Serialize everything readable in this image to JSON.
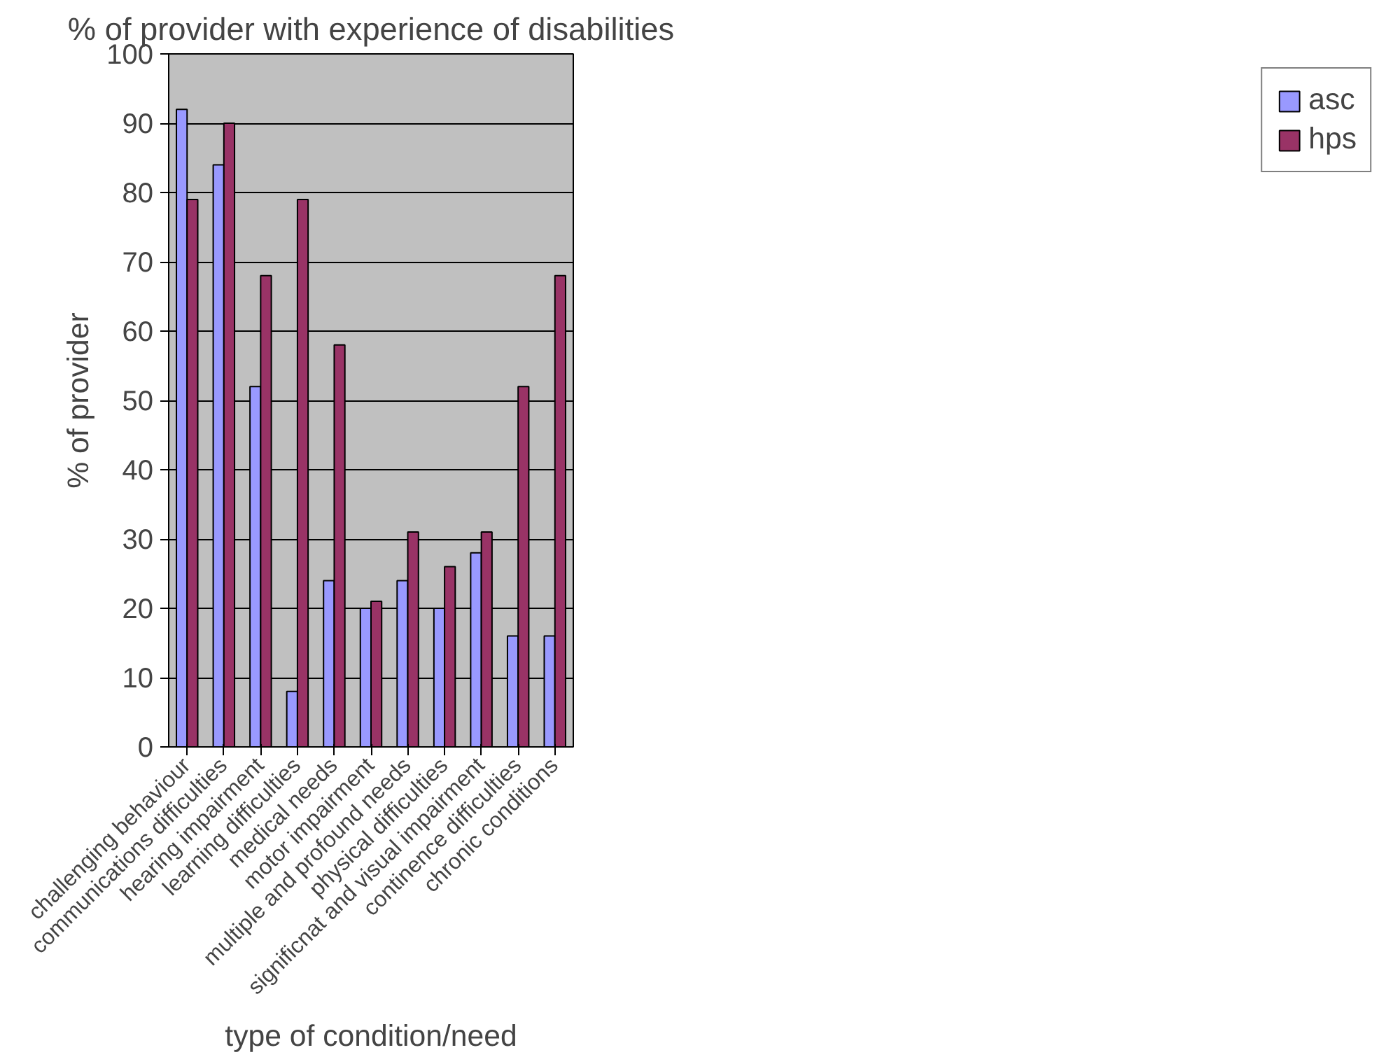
{
  "chart_data": {
    "type": "bar",
    "title": "% of provider with experience of disabilities",
    "xlabel": "type of condition/need",
    "ylabel": "% of provider",
    "categories": [
      "challenging behaviour",
      "communications difficulties",
      "hearing impairment",
      "learning difficulties",
      "medical needs",
      "motor impairment",
      "multiple and profound needs",
      "physical difficulties",
      "significnat and visual impairment",
      "continence difficulties",
      "chronic conditions"
    ],
    "series": [
      {
        "name": "asc",
        "color": "#9999ff",
        "values": [
          92,
          84,
          52,
          8,
          24,
          20,
          24,
          20,
          28,
          16,
          16
        ]
      },
      {
        "name": "hps",
        "color": "#993366",
        "values": [
          79,
          90,
          68,
          79,
          58,
          21,
          31,
          26,
          31,
          52,
          68
        ]
      }
    ],
    "ylim": [
      0,
      100
    ],
    "yticks": [
      0,
      10,
      20,
      30,
      40,
      50,
      60,
      70,
      80,
      90,
      100
    ],
    "grid": "y",
    "legend": "top right"
  }
}
